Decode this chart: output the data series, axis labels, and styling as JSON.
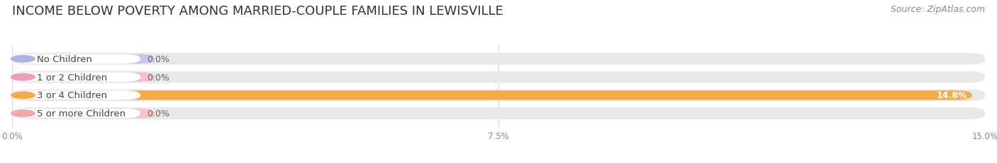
{
  "title": "INCOME BELOW POVERTY AMONG MARRIED-COUPLE FAMILIES IN LEWISVILLE",
  "source": "Source: ZipAtlas.com",
  "categories": [
    "No Children",
    "1 or 2 Children",
    "3 or 4 Children",
    "5 or more Children"
  ],
  "values": [
    0.0,
    0.0,
    14.8,
    0.0
  ],
  "display_values": [
    "0.0%",
    "0.0%",
    "14.8%",
    "0.0%"
  ],
  "bar_colors": [
    "#aeb3df",
    "#f09cbd",
    "#f5aa4a",
    "#f0a8a8"
  ],
  "zero_bar_colors": [
    "#c5c9eb",
    "#f7bcd4",
    "#f5aa4a",
    "#f5c5c5"
  ],
  "track_color": "#e8e8e8",
  "bg_between": "#ffffff",
  "xlim": [
    0,
    15.0
  ],
  "xticks": [
    0.0,
    7.5,
    15.0
  ],
  "xticklabels": [
    "0.0%",
    "7.5%",
    "15.0%"
  ],
  "title_fontsize": 13,
  "source_fontsize": 9,
  "label_fontsize": 9.5,
  "value_fontsize": 9,
  "background_color": "#ffffff",
  "zero_bar_width": 2.2
}
